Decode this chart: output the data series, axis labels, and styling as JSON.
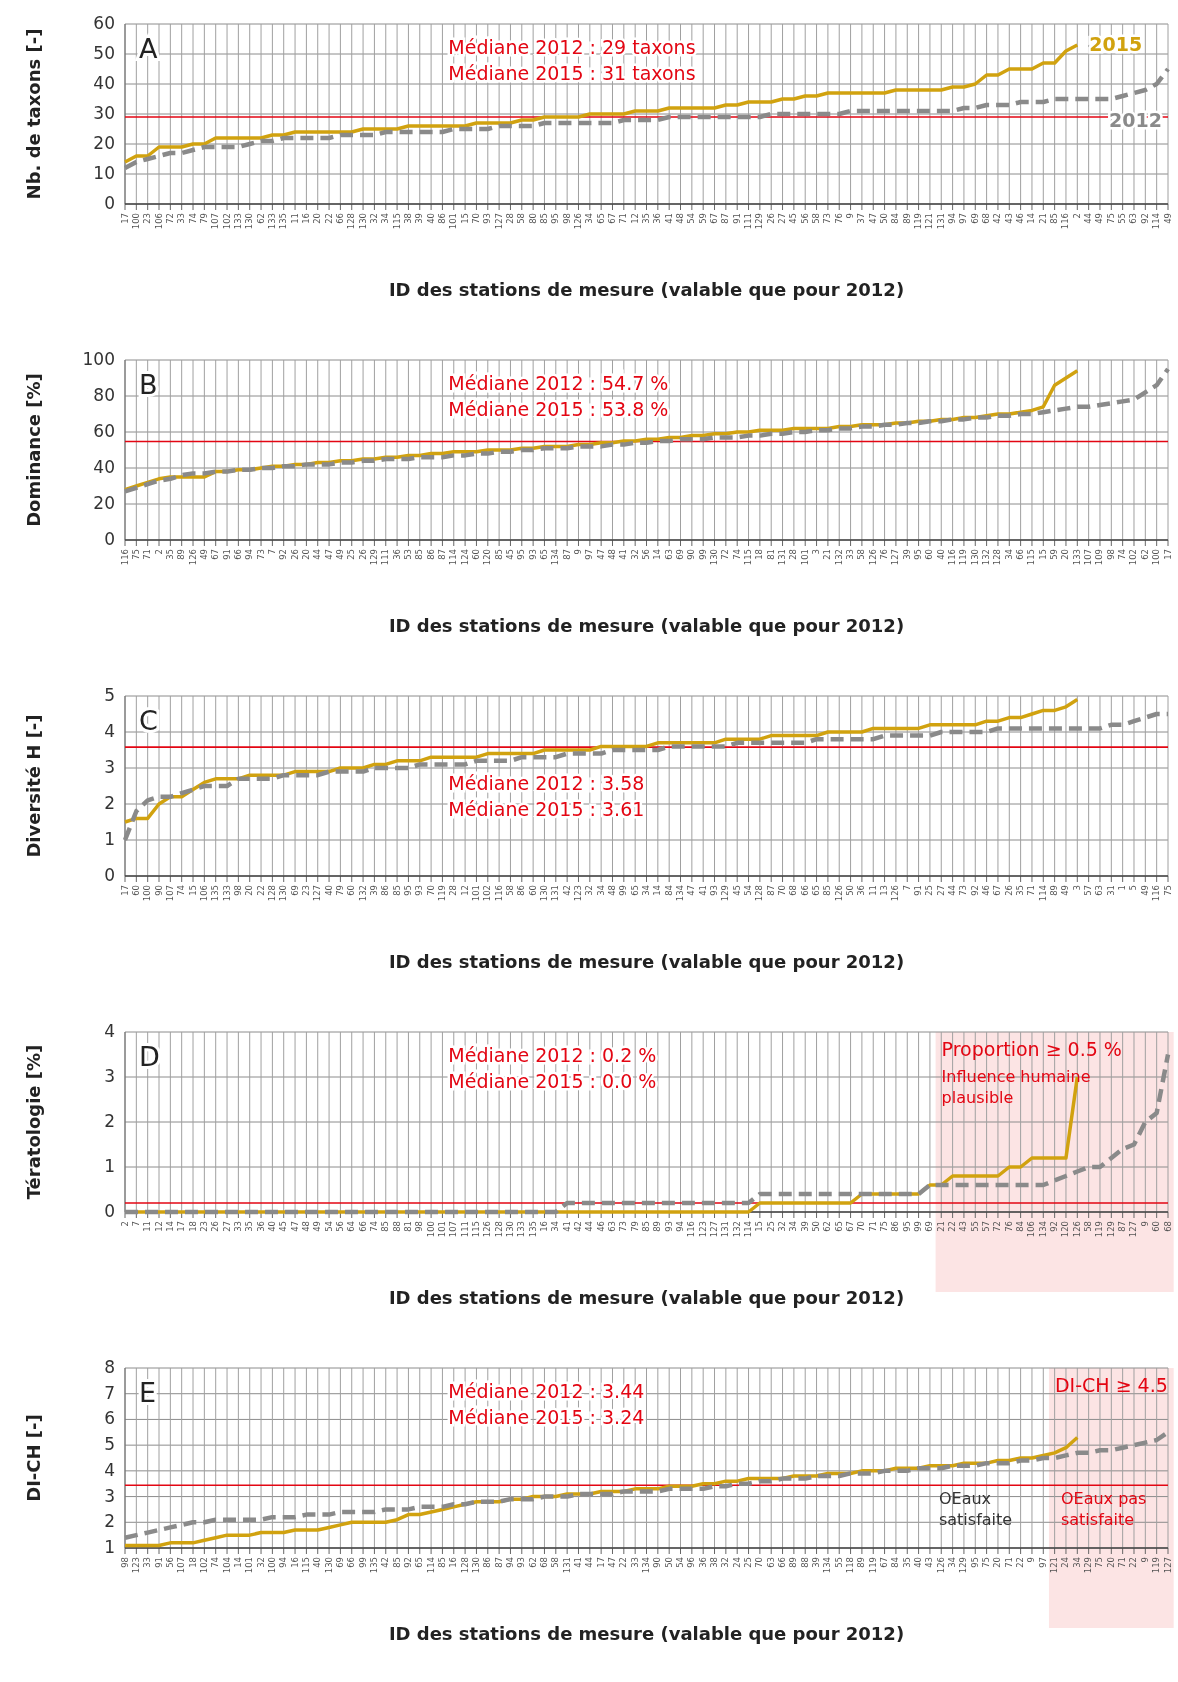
{
  "chart_data": [
    {
      "type": "line",
      "title": "A",
      "xlabel": "ID des stations de mesure (valable que pour 2012)",
      "ylabel": "Nb. de taxons [-]",
      "ylim": [
        0,
        60
      ],
      "yticks": [
        0,
        10,
        20,
        30,
        40,
        50,
        60
      ],
      "grid": true,
      "categories": [
        "17",
        "100",
        "23",
        "106",
        "72",
        "33",
        "74",
        "79",
        "107",
        "102",
        "133",
        "130",
        "62",
        "133",
        "135",
        "11",
        "16",
        "20",
        "22",
        "66",
        "128",
        "130",
        "32",
        "34",
        "115",
        "38",
        "39",
        "40",
        "86",
        "101",
        "15",
        "70",
        "93",
        "127",
        "28",
        "58",
        "80",
        "85",
        "95",
        "98",
        "126",
        "34",
        "65",
        "67",
        "71",
        "12",
        "35",
        "36",
        "41",
        "48",
        "54",
        "59",
        "67",
        "87",
        "91",
        "111",
        "129",
        "26",
        "27",
        "45",
        "56",
        "58",
        "73",
        "76",
        "9",
        "37",
        "47",
        "50",
        "84",
        "89",
        "119",
        "121",
        "131",
        "94",
        "97",
        "69",
        "68",
        "42",
        "43",
        "46",
        "14",
        "21",
        "85",
        "116",
        "2",
        "44",
        "49",
        "75",
        "55",
        "63",
        "92",
        "114",
        "49"
      ],
      "series": [
        {
          "name": "2015",
          "color": "#d1a20f",
          "line_style": "solid",
          "values": [
            14,
            16,
            16,
            19,
            19,
            19,
            20,
            20,
            22,
            22,
            22,
            22,
            22,
            23,
            23,
            24,
            24,
            24,
            24,
            24,
            24,
            25,
            25,
            25,
            25,
            26,
            26,
            26,
            26,
            26,
            26,
            27,
            27,
            27,
            27,
            28,
            28,
            29,
            29,
            29,
            29,
            30,
            30,
            30,
            30,
            31,
            31,
            31,
            32,
            32,
            32,
            32,
            32,
            33,
            33,
            34,
            34,
            34,
            35,
            35,
            36,
            36,
            37,
            37,
            37,
            37,
            37,
            37,
            38,
            38,
            38,
            38,
            38,
            39,
            39,
            40,
            43,
            43,
            45,
            45,
            45,
            47,
            47,
            51,
            53,
            null,
            null,
            null,
            null,
            null,
            null,
            null,
            null
          ]
        },
        {
          "name": "2012",
          "color": "#8a8a8a",
          "line_style": "dashed",
          "values": [
            12,
            14,
            15,
            16,
            17,
            17,
            18,
            19,
            19,
            19,
            19,
            20,
            21,
            21,
            22,
            22,
            22,
            22,
            22,
            23,
            23,
            23,
            23,
            24,
            24,
            24,
            24,
            24,
            24,
            25,
            25,
            25,
            25,
            26,
            26,
            26,
            26,
            27,
            27,
            27,
            27,
            27,
            27,
            27,
            28,
            28,
            28,
            28,
            29,
            29,
            29,
            29,
            29,
            29,
            29,
            29,
            29,
            30,
            30,
            30,
            30,
            30,
            30,
            30,
            31,
            31,
            31,
            31,
            31,
            31,
            31,
            31,
            31,
            31,
            32,
            32,
            33,
            33,
            33,
            34,
            34,
            34,
            35,
            35,
            35,
            35,
            35,
            35,
            36,
            37,
            38,
            40,
            45
          ]
        }
      ],
      "ref_lines": [
        {
          "axis": "y",
          "value": 29,
          "color": "#e30613"
        }
      ],
      "annotations": [
        "Médiane 2012 : 29 taxons",
        "Médiane 2015 : 31 taxons"
      ]
    },
    {
      "type": "line",
      "title": "B",
      "xlabel": "ID des stations de mesure (valable que pour 2012)",
      "ylabel": "Dominance [%]",
      "ylim": [
        0,
        100
      ],
      "yticks": [
        0,
        20,
        40,
        60,
        80,
        100
      ],
      "grid": true,
      "categories": [
        "116",
        "75",
        "71",
        "2",
        "35",
        "89",
        "126",
        "49",
        "67",
        "91",
        "66",
        "94",
        "73",
        "7",
        "92",
        "26",
        "20",
        "44",
        "47",
        "49",
        "25",
        "26",
        "129",
        "111",
        "36",
        "53",
        "85",
        "86",
        "87",
        "114",
        "124",
        "60",
        "120",
        "85",
        "45",
        "95",
        "93",
        "65",
        "134",
        "87",
        "9",
        "97",
        "47",
        "48",
        "41",
        "32",
        "56",
        "14",
        "63",
        "69",
        "90",
        "99",
        "130",
        "72",
        "74",
        "115",
        "18",
        "81",
        "131",
        "28",
        "101",
        "3",
        "21",
        "132",
        "33",
        "58",
        "126",
        "76",
        "127",
        "39",
        "95",
        "60",
        "40",
        "116",
        "119",
        "130",
        "132",
        "128",
        "34",
        "66",
        "115",
        "15",
        "59",
        "20",
        "133",
        "107",
        "109",
        "98",
        "74",
        "102",
        "62",
        "100",
        "17"
      ],
      "series": [
        {
          "color": "#d1a20f",
          "line_style": "solid",
          "values": [
            28,
            30,
            32,
            34,
            35,
            35,
            35,
            35,
            38,
            38,
            39,
            39,
            40,
            41,
            41,
            42,
            42,
            43,
            43,
            44,
            44,
            45,
            45,
            46,
            46,
            47,
            47,
            48,
            48,
            49,
            49,
            49,
            50,
            50,
            50,
            51,
            51,
            52,
            52,
            52,
            53,
            53,
            54,
            54,
            55,
            55,
            56,
            56,
            57,
            57,
            58,
            58,
            59,
            59,
            60,
            60,
            61,
            61,
            61,
            62,
            62,
            62,
            62,
            63,
            63,
            64,
            64,
            64,
            65,
            65,
            66,
            66,
            67,
            67,
            68,
            68,
            69,
            70,
            70,
            71,
            72,
            74,
            86,
            90,
            94,
            null,
            null,
            null,
            null,
            null,
            null,
            null,
            null
          ]
        },
        {
          "color": "#8a8a8a",
          "line_style": "dashed",
          "values": [
            27,
            29,
            31,
            33,
            34,
            36,
            37,
            37,
            38,
            38,
            39,
            39,
            40,
            40,
            41,
            41,
            42,
            42,
            42,
            43,
            43,
            44,
            44,
            45,
            45,
            45,
            46,
            46,
            46,
            47,
            47,
            48,
            48,
            49,
            49,
            50,
            50,
            51,
            51,
            51,
            52,
            52,
            52,
            53,
            53,
            54,
            54,
            55,
            55,
            56,
            56,
            56,
            57,
            57,
            57,
            58,
            58,
            59,
            59,
            60,
            60,
            61,
            61,
            62,
            62,
            63,
            63,
            64,
            64,
            65,
            65,
            66,
            66,
            67,
            67,
            68,
            68,
            69,
            69,
            70,
            70,
            71,
            72,
            73,
            74,
            74,
            75,
            76,
            77,
            78,
            82,
            86,
            95
          ]
        }
      ],
      "ref_lines": [
        {
          "axis": "y",
          "value": 54.7,
          "color": "#e30613"
        }
      ],
      "annotations": [
        "Médiane 2012 : 54.7 %",
        "Médiane 2015 : 53.8 %"
      ]
    },
    {
      "type": "line",
      "title": "C",
      "xlabel": "ID des stations de mesure (valable que pour 2012)",
      "ylabel": "Diversité H [-]",
      "ylim": [
        0,
        5
      ],
      "yticks": [
        0,
        1,
        2,
        3,
        4,
        5
      ],
      "grid": true,
      "categories": [
        "17",
        "60",
        "100",
        "90",
        "107",
        "74",
        "15",
        "106",
        "135",
        "133",
        "98",
        "20",
        "22",
        "128",
        "130",
        "69",
        "23",
        "127",
        "40",
        "79",
        "60",
        "132",
        "39",
        "86",
        "85",
        "95",
        "93",
        "70",
        "119",
        "28",
        "12",
        "101",
        "102",
        "116",
        "58",
        "86",
        "60",
        "130",
        "131",
        "42",
        "123",
        "32",
        "34",
        "48",
        "99",
        "65",
        "34",
        "14",
        "84",
        "134",
        "47",
        "41",
        "93",
        "129",
        "45",
        "54",
        "128",
        "87",
        "70",
        "68",
        "66",
        "65",
        "85",
        "126",
        "50",
        "36",
        "11",
        "13",
        "126",
        "7",
        "91",
        "25",
        "27",
        "44",
        "73",
        "92",
        "46",
        "67",
        "26",
        "35",
        "71",
        "114",
        "89",
        "49",
        "3",
        "57",
        "63",
        "31",
        "1",
        "5",
        "49",
        "116",
        "75"
      ],
      "series": [
        {
          "color": "#d1a20f",
          "line_style": "solid",
          "values": [
            1.5,
            1.6,
            1.6,
            2.0,
            2.2,
            2.2,
            2.4,
            2.6,
            2.7,
            2.7,
            2.7,
            2.8,
            2.8,
            2.8,
            2.8,
            2.9,
            2.9,
            2.9,
            2.9,
            3.0,
            3.0,
            3.0,
            3.1,
            3.1,
            3.2,
            3.2,
            3.2,
            3.3,
            3.3,
            3.3,
            3.3,
            3.3,
            3.4,
            3.4,
            3.4,
            3.4,
            3.4,
            3.5,
            3.5,
            3.5,
            3.5,
            3.5,
            3.6,
            3.6,
            3.6,
            3.6,
            3.6,
            3.7,
            3.7,
            3.7,
            3.7,
            3.7,
            3.7,
            3.8,
            3.8,
            3.8,
            3.8,
            3.9,
            3.9,
            3.9,
            3.9,
            3.9,
            4.0,
            4.0,
            4.0,
            4.0,
            4.1,
            4.1,
            4.1,
            4.1,
            4.1,
            4.2,
            4.2,
            4.2,
            4.2,
            4.2,
            4.3,
            4.3,
            4.4,
            4.4,
            4.5,
            4.6,
            4.6,
            4.7,
            4.9,
            null,
            null,
            null,
            null,
            null,
            null,
            null,
            null
          ]
        },
        {
          "color": "#8a8a8a",
          "line_style": "dashed",
          "values": [
            1.0,
            1.8,
            2.1,
            2.2,
            2.2,
            2.3,
            2.4,
            2.5,
            2.5,
            2.5,
            2.7,
            2.7,
            2.7,
            2.7,
            2.8,
            2.8,
            2.8,
            2.8,
            2.9,
            2.9,
            2.9,
            2.9,
            3.0,
            3.0,
            3.0,
            3.0,
            3.1,
            3.1,
            3.1,
            3.1,
            3.1,
            3.2,
            3.2,
            3.2,
            3.2,
            3.3,
            3.3,
            3.3,
            3.3,
            3.4,
            3.4,
            3.4,
            3.4,
            3.5,
            3.5,
            3.5,
            3.5,
            3.5,
            3.6,
            3.6,
            3.6,
            3.6,
            3.6,
            3.6,
            3.7,
            3.7,
            3.7,
            3.7,
            3.7,
            3.7,
            3.7,
            3.8,
            3.8,
            3.8,
            3.8,
            3.8,
            3.8,
            3.9,
            3.9,
            3.9,
            3.9,
            3.9,
            4.0,
            4.0,
            4.0,
            4.0,
            4.0,
            4.1,
            4.1,
            4.1,
            4.1,
            4.1,
            4.1,
            4.1,
            4.1,
            4.1,
            4.1,
            4.2,
            4.2,
            4.3,
            4.4,
            4.5,
            4.5
          ]
        }
      ],
      "ref_lines": [
        {
          "axis": "y",
          "value": 3.58,
          "color": "#e30613"
        }
      ],
      "annotations": [
        "Médiane 2012 : 3.58",
        "Médiane 2015 : 3.61"
      ]
    },
    {
      "type": "line",
      "title": "D",
      "xlabel": "ID des stations de mesure (valable que pour 2012)",
      "ylabel": "Tératologie [%]",
      "ylim": [
        0,
        4
      ],
      "yticks": [
        0,
        1,
        2,
        3,
        4
      ],
      "grid": true,
      "categories": [
        "2",
        "7",
        "11",
        "12",
        "14",
        "17",
        "18",
        "23",
        "26",
        "27",
        "33",
        "35",
        "36",
        "40",
        "45",
        "47",
        "48",
        "49",
        "54",
        "56",
        "64",
        "66",
        "74",
        "85",
        "88",
        "81",
        "98",
        "100",
        "101",
        "107",
        "111",
        "115",
        "126",
        "128",
        "130",
        "133",
        "135",
        "16",
        "34",
        "41",
        "42",
        "44",
        "46",
        "63",
        "73",
        "79",
        "85",
        "89",
        "93",
        "94",
        "116",
        "123",
        "127",
        "131",
        "132",
        "114",
        "15",
        "25",
        "32",
        "34",
        "39",
        "50",
        "62",
        "65",
        "67",
        "70",
        "71",
        "75",
        "86",
        "95",
        "99",
        "69",
        "21",
        "22",
        "43",
        "55",
        "57",
        "72",
        "76",
        "84",
        "106",
        "134",
        "92",
        "120",
        "126",
        "58",
        "119",
        "129",
        "87",
        "127",
        "9",
        "60",
        "68"
      ],
      "series": [
        {
          "color": "#d1a20f",
          "line_style": "solid",
          "values": [
            0,
            0,
            0,
            0,
            0,
            0,
            0,
            0,
            0,
            0,
            0,
            0,
            0,
            0,
            0,
            0,
            0,
            0,
            0,
            0,
            0,
            0,
            0,
            0,
            0,
            0,
            0,
            0,
            0,
            0,
            0,
            0,
            0,
            0,
            0,
            0,
            0,
            0,
            0,
            0,
            0,
            0,
            0,
            0,
            0,
            0,
            0,
            0,
            0,
            0,
            0,
            0,
            0,
            0,
            0,
            0,
            0.2,
            0.2,
            0.2,
            0.2,
            0.2,
            0.2,
            0.2,
            0.2,
            0.2,
            0.4,
            0.4,
            0.4,
            0.4,
            0.4,
            0.4,
            0.6,
            0.6,
            0.8,
            0.8,
            0.8,
            0.8,
            0.8,
            1.0,
            1.0,
            1.2,
            1.2,
            1.2,
            1.2,
            3.0,
            null,
            null,
            null,
            null,
            null,
            null,
            null,
            null
          ]
        },
        {
          "color": "#8a8a8a",
          "line_style": "dashed",
          "values": [
            0,
            0,
            0,
            0,
            0,
            0,
            0,
            0,
            0,
            0,
            0,
            0,
            0,
            0,
            0,
            0,
            0,
            0,
            0,
            0,
            0,
            0,
            0,
            0,
            0,
            0,
            0,
            0,
            0,
            0,
            0,
            0,
            0,
            0,
            0,
            0,
            0,
            0,
            0,
            0.2,
            0.2,
            0.2,
            0.2,
            0.2,
            0.2,
            0.2,
            0.2,
            0.2,
            0.2,
            0.2,
            0.2,
            0.2,
            0.2,
            0.2,
            0.2,
            0.2,
            0.4,
            0.4,
            0.4,
            0.4,
            0.4,
            0.4,
            0.4,
            0.4,
            0.4,
            0.4,
            0.4,
            0.4,
            0.4,
            0.4,
            0.4,
            0.6,
            0.6,
            0.6,
            0.6,
            0.6,
            0.6,
            0.6,
            0.6,
            0.6,
            0.6,
            0.6,
            0.7,
            0.8,
            0.9,
            1.0,
            1.0,
            1.2,
            1.4,
            1.5,
            2.0,
            2.2,
            3.5
          ]
        }
      ],
      "ref_lines": [
        {
          "axis": "y",
          "value": 0.2,
          "color": "#e30613"
        }
      ],
      "bands": [
        {
          "axis": "x",
          "from": "21",
          "to": "68",
          "label": "Proportion ≥ 0.5 %",
          "color": "#fce4e4"
        }
      ],
      "annotations": [
        "Médiane 2012 : 0.2 %",
        "Médiane 2015 : 0.0 %",
        "Influence humaine plausible"
      ]
    },
    {
      "type": "line",
      "title": "E",
      "xlabel": "ID des stations de mesure (valable que pour 2012)",
      "ylabel": "DI-CH [-]",
      "ylim": [
        1,
        8
      ],
      "yticks": [
        1,
        2,
        3,
        4,
        5,
        6,
        7,
        8
      ],
      "grid": true,
      "categories": [
        "98",
        "123",
        "33",
        "91",
        "56",
        "107",
        "18",
        "102",
        "74",
        "104",
        "14",
        "101",
        "32",
        "100",
        "94",
        "16",
        "115",
        "40",
        "130",
        "69",
        "66",
        "99",
        "135",
        "42",
        "85",
        "92",
        "65",
        "114",
        "85",
        "16",
        "128",
        "130",
        "86",
        "87",
        "94",
        "93",
        "62",
        "68",
        "58",
        "131",
        "41",
        "44",
        "17",
        "47",
        "22",
        "33",
        "134",
        "90",
        "50",
        "54",
        "96",
        "36",
        "38",
        "32",
        "24",
        "25",
        "70",
        "63",
        "66",
        "89",
        "88",
        "39",
        "134",
        "55",
        "118",
        "89",
        "119",
        "67",
        "84",
        "35",
        "40",
        "43",
        "126",
        "34",
        "129",
        "95",
        "75",
        "20",
        "71",
        "22",
        "9",
        "97",
        "121",
        "24",
        "34",
        "129",
        "75",
        "20",
        "71",
        "22",
        "9",
        "119",
        "127"
      ],
      "series": [
        {
          "color": "#d1a20f",
          "line_style": "solid",
          "values": [
            1.1,
            1.1,
            1.1,
            1.1,
            1.2,
            1.2,
            1.2,
            1.3,
            1.4,
            1.5,
            1.5,
            1.5,
            1.6,
            1.6,
            1.6,
            1.7,
            1.7,
            1.7,
            1.8,
            1.9,
            2.0,
            2.0,
            2.0,
            2.0,
            2.1,
            2.3,
            2.3,
            2.4,
            2.5,
            2.6,
            2.7,
            2.8,
            2.8,
            2.8,
            2.9,
            2.9,
            3.0,
            3.0,
            3.0,
            3.1,
            3.1,
            3.1,
            3.2,
            3.2,
            3.2,
            3.3,
            3.3,
            3.3,
            3.4,
            3.4,
            3.4,
            3.5,
            3.5,
            3.6,
            3.6,
            3.7,
            3.7,
            3.7,
            3.7,
            3.8,
            3.8,
            3.8,
            3.9,
            3.9,
            3.9,
            4.0,
            4.0,
            4.0,
            4.1,
            4.1,
            4.1,
            4.2,
            4.2,
            4.2,
            4.3,
            4.3,
            4.3,
            4.4,
            4.4,
            4.5,
            4.5,
            4.6,
            4.7,
            4.9,
            5.3,
            null,
            null,
            null,
            null,
            null,
            null,
            null,
            null
          ]
        },
        {
          "color": "#8a8a8a",
          "line_style": "dashed",
          "values": [
            1.4,
            1.5,
            1.6,
            1.7,
            1.8,
            1.9,
            2.0,
            2.0,
            2.1,
            2.1,
            2.1,
            2.1,
            2.1,
            2.2,
            2.2,
            2.2,
            2.3,
            2.3,
            2.3,
            2.4,
            2.4,
            2.4,
            2.4,
            2.5,
            2.5,
            2.5,
            2.6,
            2.6,
            2.6,
            2.7,
            2.7,
            2.8,
            2.8,
            2.8,
            2.9,
            2.9,
            2.9,
            3.0,
            3.0,
            3.0,
            3.1,
            3.1,
            3.1,
            3.1,
            3.2,
            3.2,
            3.2,
            3.2,
            3.3,
            3.3,
            3.3,
            3.3,
            3.4,
            3.4,
            3.5,
            3.5,
            3.6,
            3.6,
            3.7,
            3.7,
            3.7,
            3.8,
            3.8,
            3.8,
            3.9,
            3.9,
            3.9,
            4.0,
            4.0,
            4.0,
            4.1,
            4.1,
            4.1,
            4.2,
            4.2,
            4.2,
            4.3,
            4.3,
            4.3,
            4.4,
            4.4,
            4.5,
            4.5,
            4.6,
            4.7,
            4.7,
            4.8,
            4.8,
            4.9,
            5.0,
            5.1,
            5.2,
            5.5
          ]
        }
      ],
      "ref_lines": [
        {
          "axis": "y",
          "value": 3.44,
          "color": "#e30613"
        }
      ],
      "bands": [
        {
          "axis": "x",
          "from": "121",
          "to": "127",
          "label": "DI-CH ≥ 4.5",
          "color": "#fce4e4"
        }
      ],
      "annotations": [
        "Médiane 2012 : 3.44",
        "Médiane 2015 : 3.24",
        "OEaux satisfaite",
        "OEaux pas satisfaite"
      ]
    }
  ]
}
